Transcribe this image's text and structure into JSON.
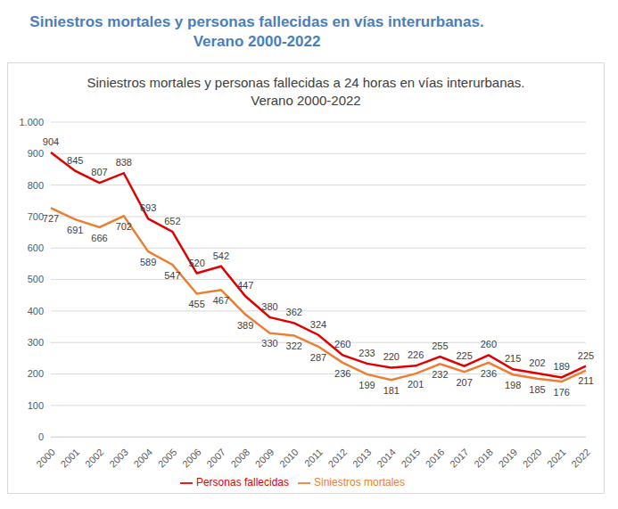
{
  "chart_data": {
    "type": "line",
    "title": "Siniestros mortales y personas fallecidas en vías interurbanas.\nVerano 2000-2022",
    "subtitle": "Siniestros mortales y personas fallecidas a 24 horas en vías interurbanas.\nVerano 2000-2022",
    "categories": [
      "2000",
      "2001",
      "2002",
      "2003",
      "2004",
      "2005",
      "2006",
      "2007",
      "2008",
      "2009",
      "2010",
      "2011",
      "2012",
      "2013",
      "2014",
      "2015",
      "2016",
      "2017",
      "2018",
      "2019",
      "2020",
      "2021",
      "2022"
    ],
    "series": [
      {
        "name": "Siniestros mortales",
        "color": "#ed7d31",
        "values": [
          727,
          691,
          666,
          702,
          589,
          547,
          455,
          467,
          389,
          330,
          322,
          287,
          236,
          199,
          181,
          201,
          232,
          207,
          236,
          198,
          185,
          176,
          211
        ]
      },
      {
        "name": "Personas fallecidas",
        "color": "#e00000",
        "values": [
          904,
          845,
          807,
          838,
          693,
          652,
          520,
          542,
          447,
          380,
          362,
          324,
          260,
          233,
          220,
          226,
          255,
          225,
          260,
          215,
          202,
          189,
          225
        ]
      }
    ],
    "ylim": [
      0,
      1000
    ],
    "yticks": [
      0,
      100,
      200,
      300,
      400,
      500,
      600,
      700,
      800,
      900,
      {
        "value": 1000,
        "label": "1.000"
      }
    ],
    "grid": true,
    "legend": "bottom",
    "data_labels": true
  }
}
